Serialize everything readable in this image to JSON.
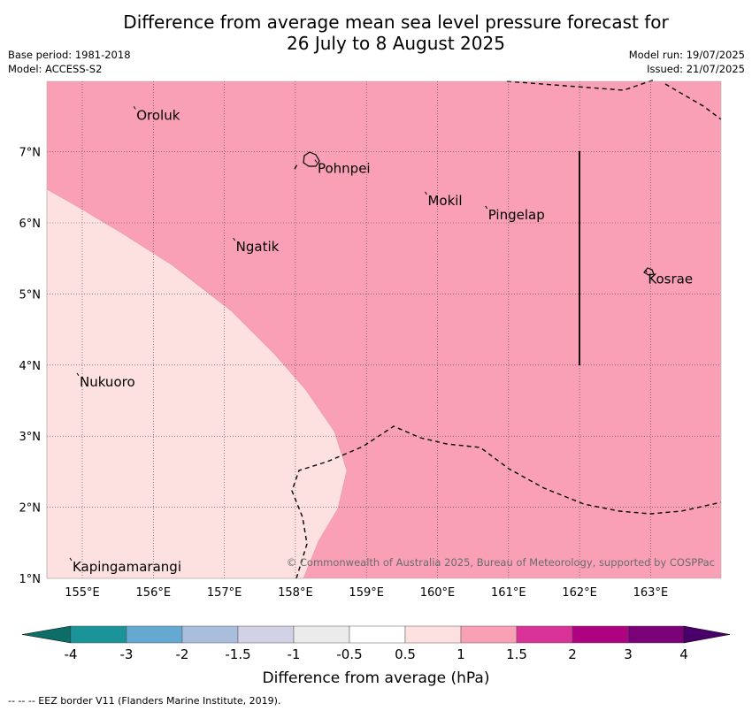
{
  "title": {
    "line1": "Difference from average mean sea level pressure forecast for",
    "line2": "26 July to 8 August 2025"
  },
  "meta": {
    "base_period": "Base period: 1981-2018",
    "model": "Model: ACCESS-S2",
    "model_run": "Model run: 19/07/2025",
    "issued": "Issued: 21/07/2025"
  },
  "map": {
    "lon_range": [
      154.5,
      164.0
    ],
    "lat_range": [
      1.0,
      8.0
    ],
    "lon_ticks": [
      "155°E",
      "156°E",
      "157°E",
      "158°E",
      "159°E",
      "160°E",
      "161°E",
      "162°E",
      "163°E"
    ],
    "lat_ticks": [
      "1°N",
      "2°N",
      "3°N",
      "4°N",
      "5°N",
      "6°N",
      "7°N"
    ],
    "places": [
      {
        "name": "Oroluk",
        "lon": 155.75,
        "lat": 7.6
      },
      {
        "name": "Pohnpei",
        "lon": 158.3,
        "lat": 6.85
      },
      {
        "name": "Mokil",
        "lon": 159.85,
        "lat": 6.4
      },
      {
        "name": "Pingelap",
        "lon": 160.7,
        "lat": 6.2
      },
      {
        "name": "Ngatik",
        "lon": 157.15,
        "lat": 5.75
      },
      {
        "name": "Kosrae",
        "lon": 162.95,
        "lat": 5.3
      },
      {
        "name": "Nukuoro",
        "lon": 154.95,
        "lat": 3.85
      },
      {
        "name": "Kapingamarangi",
        "lon": 154.85,
        "lat": 1.25
      }
    ],
    "colors": {
      "anomaly_1_to_1_5": "#f9a0b7",
      "anomaly_0_5_to_1": "#fde0e0"
    },
    "copyright": "© Commonwealth of Australia 2025, Bureau of Meteorology, supported by COSPPac"
  },
  "colorbar": {
    "labels": [
      "-4",
      "-3",
      "-2",
      "-1.5",
      "-1",
      "-0.5",
      "0.5",
      "1",
      "1.5",
      "2",
      "3",
      "4"
    ],
    "colors": [
      "#0c6e66",
      "#1b9499",
      "#63a9d1",
      "#a9bddd",
      "#d2d2e6",
      "#ebebeb",
      "#ffffff",
      "#fde0e0",
      "#f9a0b7",
      "#d93398",
      "#ae0280",
      "#7a0177",
      "#4a006a"
    ],
    "label": "Difference from average (hPa)"
  },
  "footnote": "--  --  -- EEZ border V11 (Flanders Marine Institute, 2019)."
}
